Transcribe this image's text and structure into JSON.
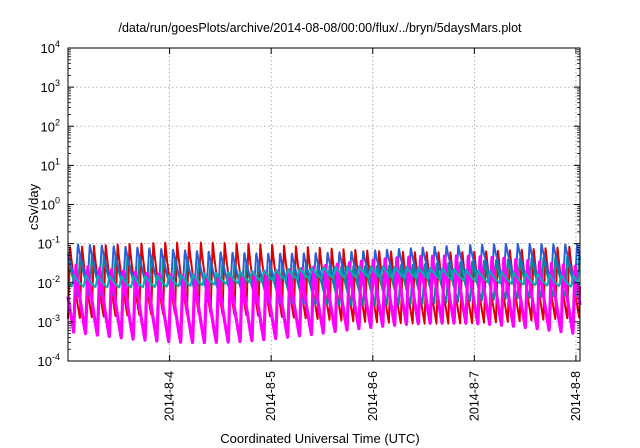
{
  "chart_data": {
    "type": "line",
    "title": "/data/run/goesPlots/archive/2014-08-08/00:00/flux/../bryn/5daysMars.plot",
    "xlabel": "Coordinated Universal Time (UTC)",
    "ylabel": "cSv/day",
    "yscale": "log",
    "ylim": [
      0.0001,
      10000
    ],
    "xlim": [
      3.0,
      8.04
    ],
    "y_ticks": [
      {
        "base": "10",
        "exp": "-4"
      },
      {
        "base": "10",
        "exp": "-3"
      },
      {
        "base": "10",
        "exp": "-2"
      },
      {
        "base": "10",
        "exp": "-1"
      },
      {
        "base": "10",
        "exp": "0"
      },
      {
        "base": "10",
        "exp": "1"
      },
      {
        "base": "10",
        "exp": "2"
      },
      {
        "base": "10",
        "exp": "3"
      },
      {
        "base": "10",
        "exp": "4"
      }
    ],
    "x_ticks": [
      {
        "label": "2014-8-4",
        "day": 4
      },
      {
        "label": "2014-8-5",
        "day": 5
      },
      {
        "label": "2014-8-6",
        "day": 6
      },
      {
        "label": "2014-8-7",
        "day": 7
      },
      {
        "label": "2014-8-8",
        "day": 8
      }
    ],
    "grid": true,
    "legend": "none",
    "oscillation_period_days": 0.117,
    "series": [
      {
        "color": "#dd0000",
        "peak": 0.09,
        "trough": 0.0012
      },
      {
        "color": "#009090",
        "peak": 0.04,
        "trough": 0.0035
      },
      {
        "color": "#2a5fd8",
        "peak": 0.08,
        "trough": 0.008
      },
      {
        "color": "#ff00ff",
        "peak": 0.03,
        "trough": 0.0005
      },
      {
        "color": "#00b0b0",
        "peak": 0.02,
        "trough": 0.01
      }
    ]
  }
}
